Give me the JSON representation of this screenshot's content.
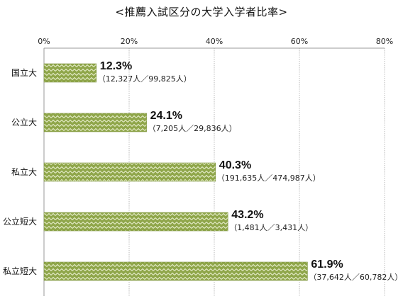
{
  "chart_data": {
    "type": "bar",
    "orientation": "horizontal",
    "title": "<推薦入試区分の大学入学者比率>",
    "categories": [
      "国立大",
      "公立大",
      "私立大",
      "公立短大",
      "私立短大"
    ],
    "values": [
      12.3,
      24.1,
      40.3,
      43.2,
      61.9
    ],
    "value_labels": [
      "12.3%",
      "24.1%",
      "40.3%",
      "43.2%",
      "61.9%"
    ],
    "detail_labels": [
      "（12,327人／99,825人）",
      "（7,205人／29,836人）",
      "（191,635人／474,987人）",
      "（1,481人／3,431人）",
      "（37,642人／60,782人）"
    ],
    "xlim": [
      0,
      80
    ],
    "xticks": [
      0,
      20,
      40,
      60,
      80
    ],
    "xtick_labels": [
      "0%",
      "20%",
      "40%",
      "60%",
      "80%"
    ],
    "axis_position": "top",
    "grid": true,
    "bar_color": "#8fa64a",
    "bar_pattern_color": "#e9efcf"
  }
}
